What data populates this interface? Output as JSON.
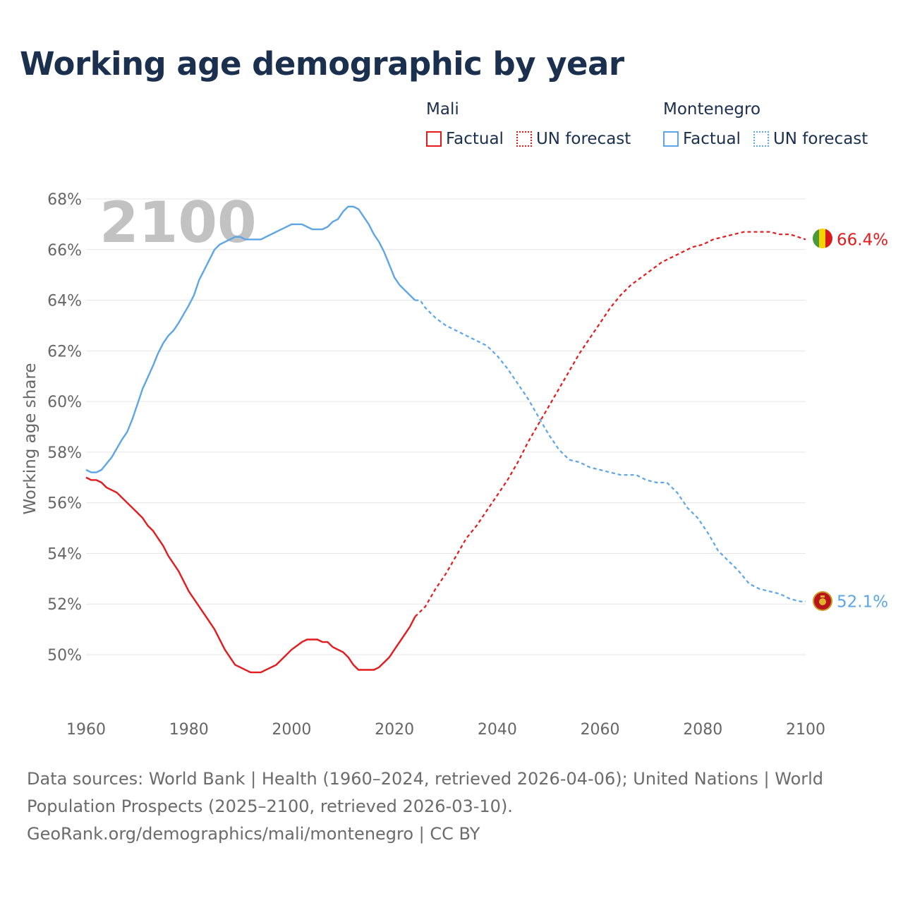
{
  "title": "Working age demographic by year",
  "legend": {
    "groups": [
      {
        "country": "Mali",
        "color": "#e41a1c",
        "factual_label": "Factual",
        "forecast_label": "UN forecast"
      },
      {
        "country": "Montenegro",
        "color": "#5da5e6",
        "factual_label": "Factual",
        "forecast_label": "UN forecast"
      }
    ]
  },
  "year_watermark": "2100",
  "footer": {
    "sources": "Data sources: World Bank | Health (1960–2024, retrieved 2026-04-06); United Nations | World Population Prospects (2025–2100, retrieved 2026-03-10).",
    "attribution": "GeoRank.org/demographics/mali/montenegro | CC BY"
  },
  "chart_data": {
    "type": "line",
    "title": "Working age demographic by year",
    "xlabel": "",
    "ylabel": "Working age share",
    "xlim": [
      1960,
      2100
    ],
    "ylim": [
      48,
      68
    ],
    "x_ticks": [
      "1960",
      "1980",
      "2000",
      "2020",
      "2040",
      "2060",
      "2080",
      "2100"
    ],
    "y_ticks": [
      "50%",
      "52%",
      "54%",
      "56%",
      "58%",
      "60%",
      "62%",
      "64%",
      "66%",
      "68%"
    ],
    "grid": true,
    "forecast_start": 2024,
    "series": [
      {
        "name": "Mali",
        "color": "#e41a1c",
        "end_label": "66.4%",
        "flag": "mali-flag-icon",
        "points": [
          [
            1960,
            57.0
          ],
          [
            1961,
            56.9
          ],
          [
            1962,
            56.9
          ],
          [
            1963,
            56.8
          ],
          [
            1964,
            56.6
          ],
          [
            1966,
            56.4
          ],
          [
            1968,
            56.0
          ],
          [
            1970,
            55.6
          ],
          [
            1971,
            55.4
          ],
          [
            1972,
            55.1
          ],
          [
            1973,
            54.9
          ],
          [
            1974,
            54.6
          ],
          [
            1975,
            54.3
          ],
          [
            1976,
            53.9
          ],
          [
            1978,
            53.3
          ],
          [
            1980,
            52.5
          ],
          [
            1982,
            51.9
          ],
          [
            1984,
            51.3
          ],
          [
            1985,
            51.0
          ],
          [
            1987,
            50.2
          ],
          [
            1989,
            49.6
          ],
          [
            1990,
            49.5
          ],
          [
            1992,
            49.3
          ],
          [
            1994,
            49.3
          ],
          [
            1997,
            49.6
          ],
          [
            2000,
            50.2
          ],
          [
            2002,
            50.5
          ],
          [
            2003,
            50.6
          ],
          [
            2005,
            50.6
          ],
          [
            2006,
            50.5
          ],
          [
            2007,
            50.5
          ],
          [
            2008,
            50.3
          ],
          [
            2010,
            50.1
          ],
          [
            2011,
            49.9
          ],
          [
            2012,
            49.6
          ],
          [
            2013,
            49.4
          ],
          [
            2016,
            49.4
          ],
          [
            2017,
            49.5
          ],
          [
            2019,
            49.9
          ],
          [
            2020,
            50.2
          ],
          [
            2022,
            50.8
          ],
          [
            2023,
            51.1
          ],
          [
            2024,
            51.5
          ],
          [
            2026,
            51.9
          ],
          [
            2028,
            52.6
          ],
          [
            2030,
            53.2
          ],
          [
            2032,
            53.9
          ],
          [
            2034,
            54.6
          ],
          [
            2036,
            55.1
          ],
          [
            2038,
            55.7
          ],
          [
            2040,
            56.3
          ],
          [
            2042,
            56.9
          ],
          [
            2044,
            57.6
          ],
          [
            2046,
            58.4
          ],
          [
            2048,
            59.1
          ],
          [
            2050,
            59.8
          ],
          [
            2052,
            60.5
          ],
          [
            2054,
            61.2
          ],
          [
            2056,
            61.9
          ],
          [
            2058,
            62.5
          ],
          [
            2060,
            63.1
          ],
          [
            2062,
            63.7
          ],
          [
            2064,
            64.2
          ],
          [
            2066,
            64.6
          ],
          [
            2068,
            64.9
          ],
          [
            2070,
            65.2
          ],
          [
            2072,
            65.5
          ],
          [
            2074,
            65.7
          ],
          [
            2076,
            65.9
          ],
          [
            2078,
            66.1
          ],
          [
            2080,
            66.2
          ],
          [
            2082,
            66.4
          ],
          [
            2084,
            66.5
          ],
          [
            2086,
            66.6
          ],
          [
            2088,
            66.7
          ],
          [
            2090,
            66.7
          ],
          [
            2093,
            66.7
          ],
          [
            2095,
            66.6
          ],
          [
            2097,
            66.6
          ],
          [
            2100,
            66.4
          ]
        ]
      },
      {
        "name": "Montenegro",
        "color": "#5da5e6",
        "end_label": "52.1%",
        "flag": "montenegro-flag-icon",
        "points": [
          [
            1960,
            57.3
          ],
          [
            1961,
            57.2
          ],
          [
            1962,
            57.2
          ],
          [
            1963,
            57.3
          ],
          [
            1965,
            57.8
          ],
          [
            1967,
            58.5
          ],
          [
            1968,
            58.8
          ],
          [
            1969,
            59.3
          ],
          [
            1970,
            59.9
          ],
          [
            1971,
            60.5
          ],
          [
            1973,
            61.4
          ],
          [
            1974,
            61.9
          ],
          [
            1975,
            62.3
          ],
          [
            1976,
            62.6
          ],
          [
            1977,
            62.8
          ],
          [
            1978,
            63.1
          ],
          [
            1980,
            63.8
          ],
          [
            1981,
            64.2
          ],
          [
            1982,
            64.8
          ],
          [
            1983,
            65.2
          ],
          [
            1984,
            65.6
          ],
          [
            1985,
            66.0
          ],
          [
            1986,
            66.2
          ],
          [
            1988,
            66.4
          ],
          [
            1989,
            66.5
          ],
          [
            1990,
            66.5
          ],
          [
            1991,
            66.4
          ],
          [
            1994,
            66.4
          ],
          [
            1996,
            66.6
          ],
          [
            1998,
            66.8
          ],
          [
            2000,
            67.0
          ],
          [
            2002,
            67.0
          ],
          [
            2003,
            66.9
          ],
          [
            2004,
            66.8
          ],
          [
            2006,
            66.8
          ],
          [
            2007,
            66.9
          ],
          [
            2008,
            67.1
          ],
          [
            2009,
            67.2
          ],
          [
            2010,
            67.5
          ],
          [
            2011,
            67.7
          ],
          [
            2012,
            67.7
          ],
          [
            2013,
            67.6
          ],
          [
            2014,
            67.3
          ],
          [
            2015,
            67.0
          ],
          [
            2016,
            66.6
          ],
          [
            2017,
            66.3
          ],
          [
            2018,
            65.9
          ],
          [
            2019,
            65.4
          ],
          [
            2020,
            64.9
          ],
          [
            2021,
            64.6
          ],
          [
            2022,
            64.4
          ],
          [
            2024,
            64.0
          ],
          [
            2025,
            64.0
          ],
          [
            2026,
            63.7
          ],
          [
            2028,
            63.3
          ],
          [
            2030,
            63.0
          ],
          [
            2032,
            62.8
          ],
          [
            2034,
            62.6
          ],
          [
            2036,
            62.4
          ],
          [
            2038,
            62.2
          ],
          [
            2040,
            61.8
          ],
          [
            2042,
            61.3
          ],
          [
            2044,
            60.7
          ],
          [
            2046,
            60.1
          ],
          [
            2048,
            59.4
          ],
          [
            2050,
            58.7
          ],
          [
            2052,
            58.1
          ],
          [
            2054,
            57.7
          ],
          [
            2056,
            57.6
          ],
          [
            2058,
            57.4
          ],
          [
            2060,
            57.3
          ],
          [
            2062,
            57.2
          ],
          [
            2064,
            57.1
          ],
          [
            2067,
            57.1
          ],
          [
            2069,
            56.9
          ],
          [
            2071,
            56.8
          ],
          [
            2073,
            56.8
          ],
          [
            2075,
            56.4
          ],
          [
            2077,
            55.8
          ],
          [
            2079,
            55.4
          ],
          [
            2081,
            54.8
          ],
          [
            2083,
            54.1
          ],
          [
            2085,
            53.7
          ],
          [
            2087,
            53.3
          ],
          [
            2089,
            52.8
          ],
          [
            2091,
            52.6
          ],
          [
            2093,
            52.5
          ],
          [
            2095,
            52.4
          ],
          [
            2097,
            52.2
          ],
          [
            2099,
            52.1
          ],
          [
            2100,
            52.1
          ]
        ]
      }
    ]
  }
}
